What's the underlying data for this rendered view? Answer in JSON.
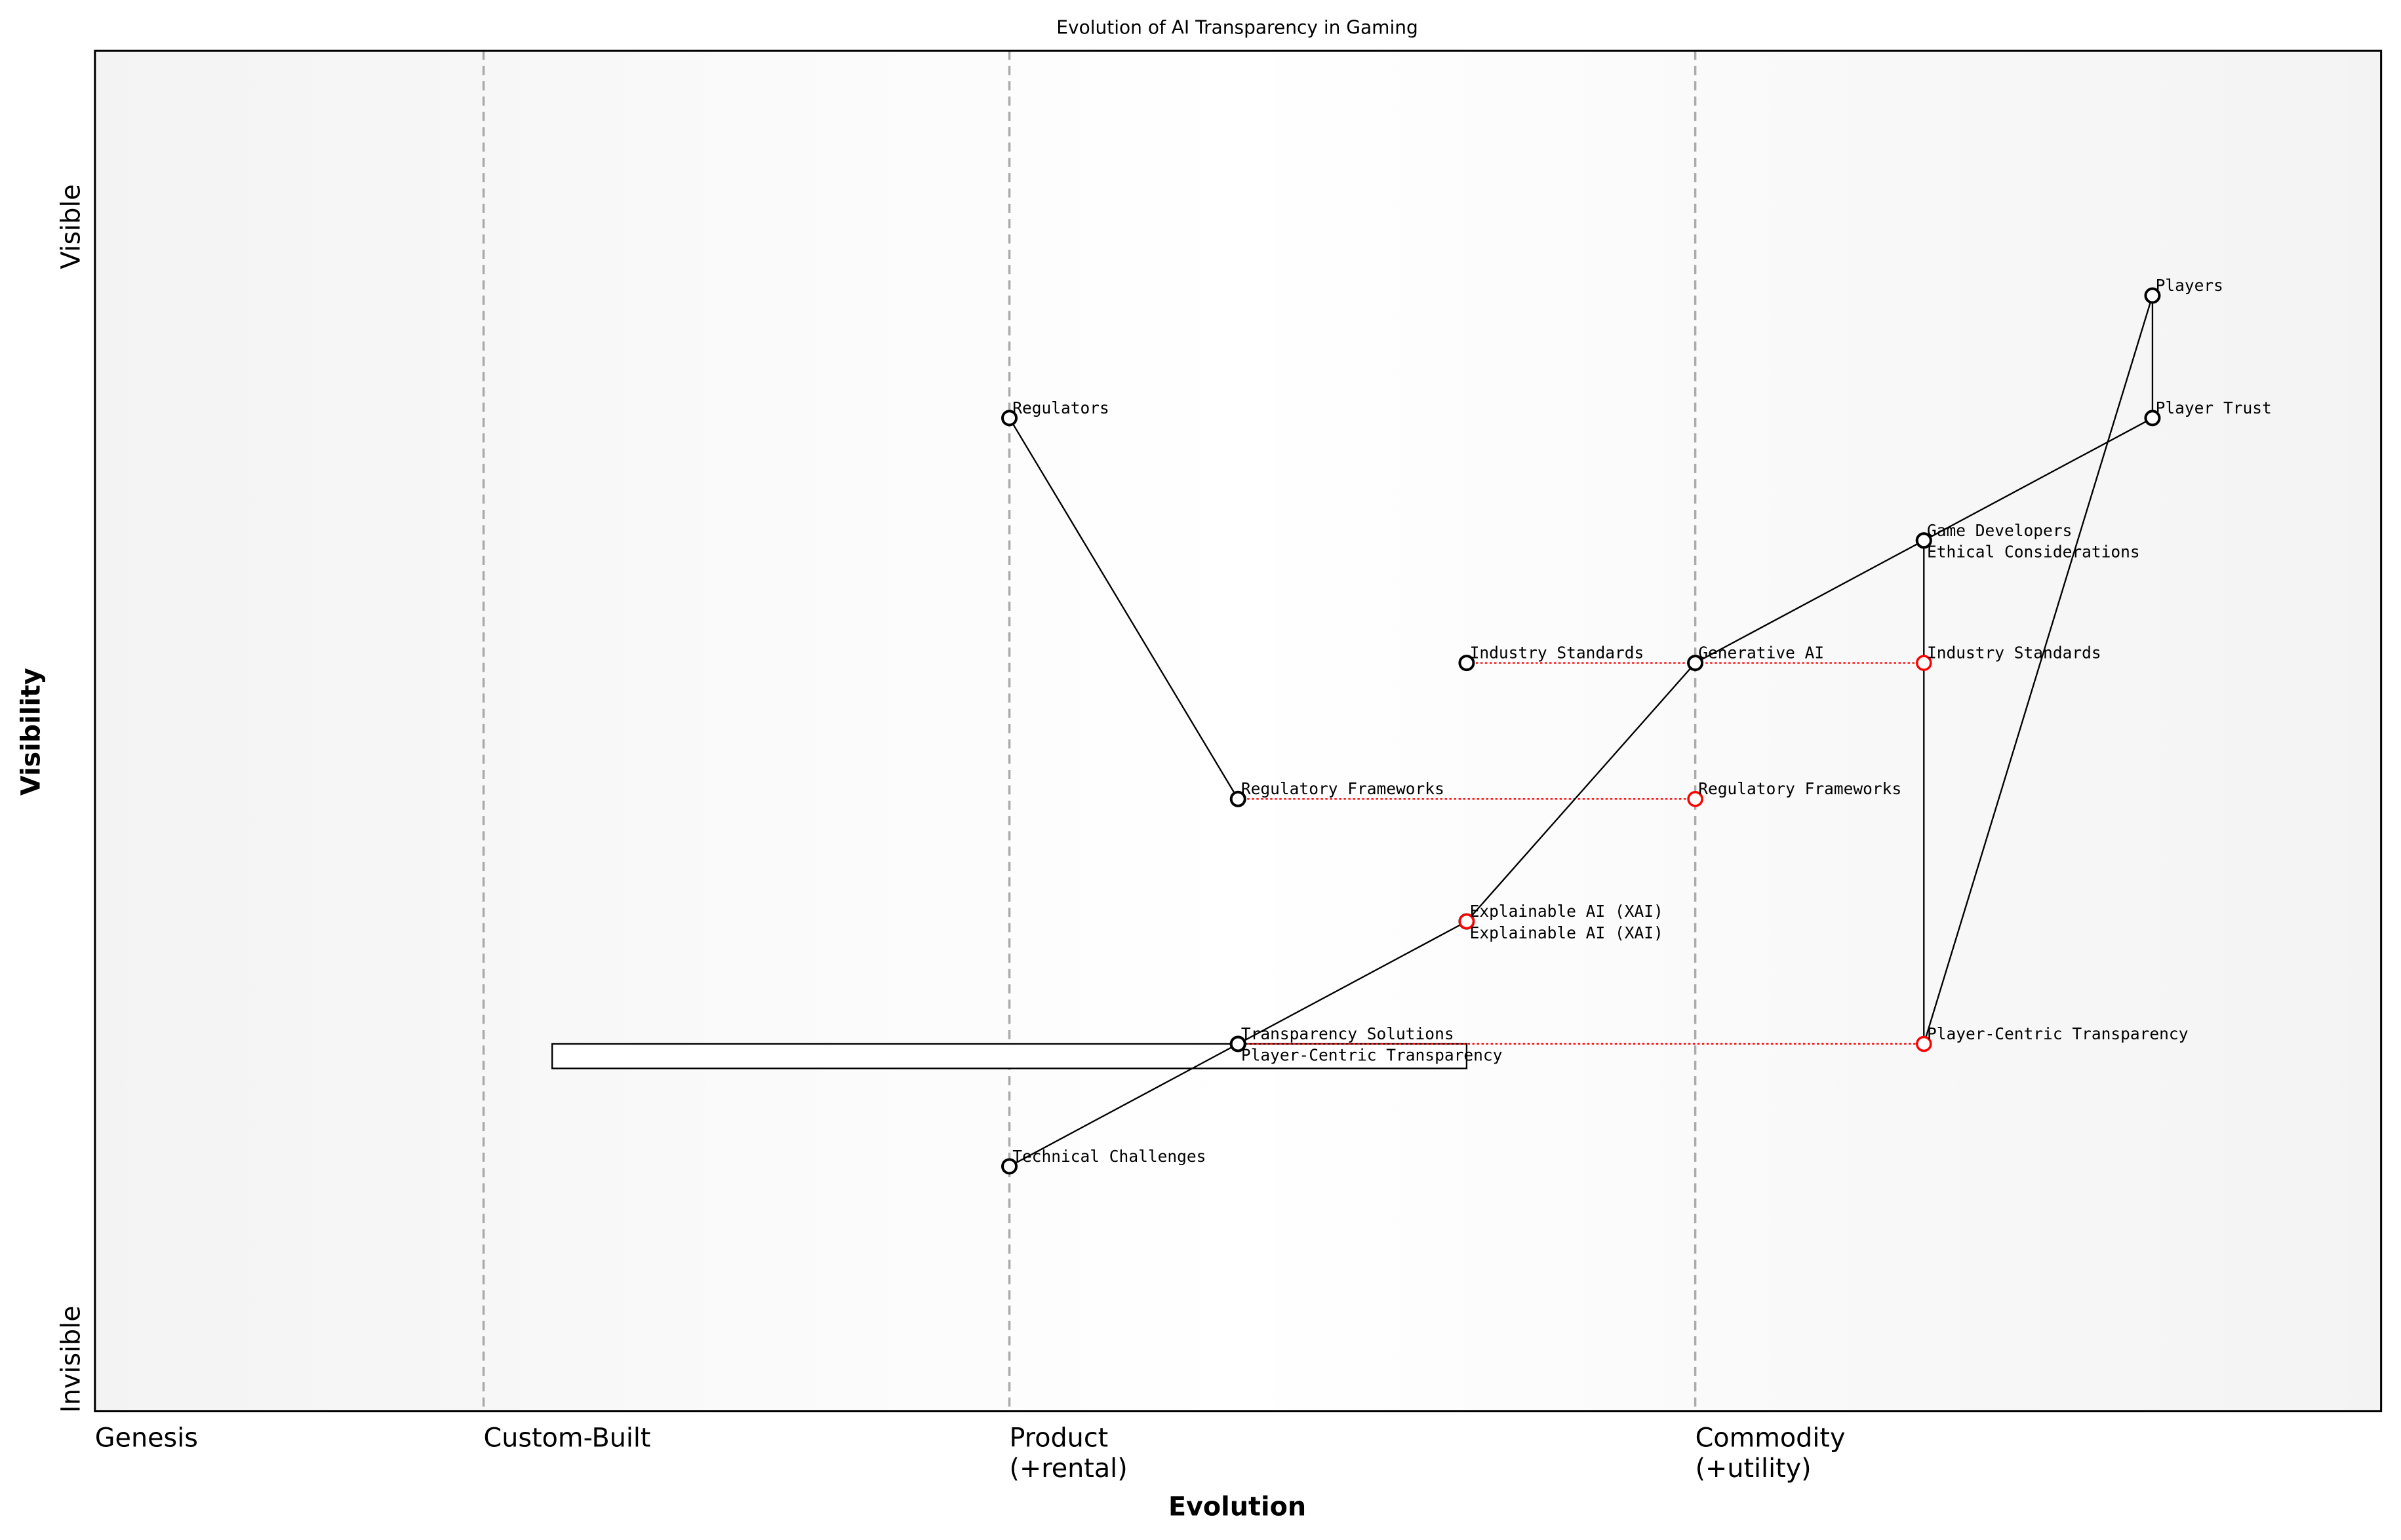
{
  "title": "Evolution of AI Transparency in Gaming",
  "x_axis_label": "Evolution",
  "y_axis_label": "Visibility",
  "y_top_label": "Visible",
  "y_bottom_label": "Invisible",
  "stages": [
    {
      "label": "Genesis",
      "evolution": 0.0
    },
    {
      "label": "Custom-Built",
      "evolution": 0.17
    },
    {
      "label": "Product",
      "sublabel": "(+rental)",
      "evolution": 0.4
    },
    {
      "label": "Commodity",
      "sublabel": "(+utility)",
      "evolution": 0.7
    }
  ],
  "components": [
    {
      "name": "Regulators",
      "evolution": 0.4,
      "visibility": 0.73
    },
    {
      "name": "Regulatory Frameworks",
      "evolution": 0.5,
      "visibility": 0.45
    },
    {
      "name": "Industry Standards",
      "evolution": 0.6,
      "visibility": 0.55
    },
    {
      "name": "Generative AI",
      "evolution": 0.7,
      "visibility": 0.55
    },
    {
      "name": "Explainable AI (XAI)",
      "evolution": 0.6,
      "visibility": 0.36
    },
    {
      "name": "Technical Challenges",
      "evolution": 0.4,
      "visibility": 0.18
    },
    {
      "name": "Transparency Solutions",
      "evolution": 0.5,
      "visibility": 0.27
    },
    {
      "name": "Player-Centric Transparency",
      "evolution": 0.5,
      "visibility": 0.27
    },
    {
      "name": "Game Developers",
      "evolution": 0.8,
      "visibility": 0.64
    },
    {
      "name": "Ethical Considerations",
      "evolution": 0.8,
      "visibility": 0.64
    },
    {
      "name": "Player Trust",
      "evolution": 0.9,
      "visibility": 0.73
    },
    {
      "name": "Players",
      "evolution": 0.9,
      "visibility": 0.82
    }
  ],
  "evolved": [
    {
      "name": "Industry Standards",
      "from": 0.6,
      "evolution": 0.8,
      "visibility": 0.55
    },
    {
      "name": "Regulatory Frameworks",
      "from": 0.5,
      "evolution": 0.7,
      "visibility": 0.45
    },
    {
      "name": "Explainable AI (XAI)",
      "from": 0.6,
      "evolution": 0.6,
      "visibility": 0.36
    },
    {
      "name": "Player-Centric Transparency",
      "from": 0.5,
      "evolution": 0.8,
      "visibility": 0.27
    }
  ],
  "links": [
    [
      "Regulators",
      "Regulatory Frameworks"
    ],
    [
      "Technical Challenges",
      "Explainable AI (XAI)"
    ],
    [
      "Explainable AI (XAI)",
      "Generative AI"
    ],
    [
      "Generative AI",
      "Game Developers"
    ],
    [
      "Game Developers",
      "Player Trust"
    ],
    [
      "Players",
      "Player Trust"
    ],
    [
      "Game Developers",
      "Player-Centric Transparency*"
    ],
    [
      "Players",
      "Player-Centric Transparency*"
    ]
  ],
  "pipeline": {
    "from": 0.2,
    "to": 0.6,
    "visibility": 0.27
  },
  "colors": {
    "evolved": "#ff0000",
    "component": "#000000",
    "stage_line": "#aaaaaa"
  }
}
